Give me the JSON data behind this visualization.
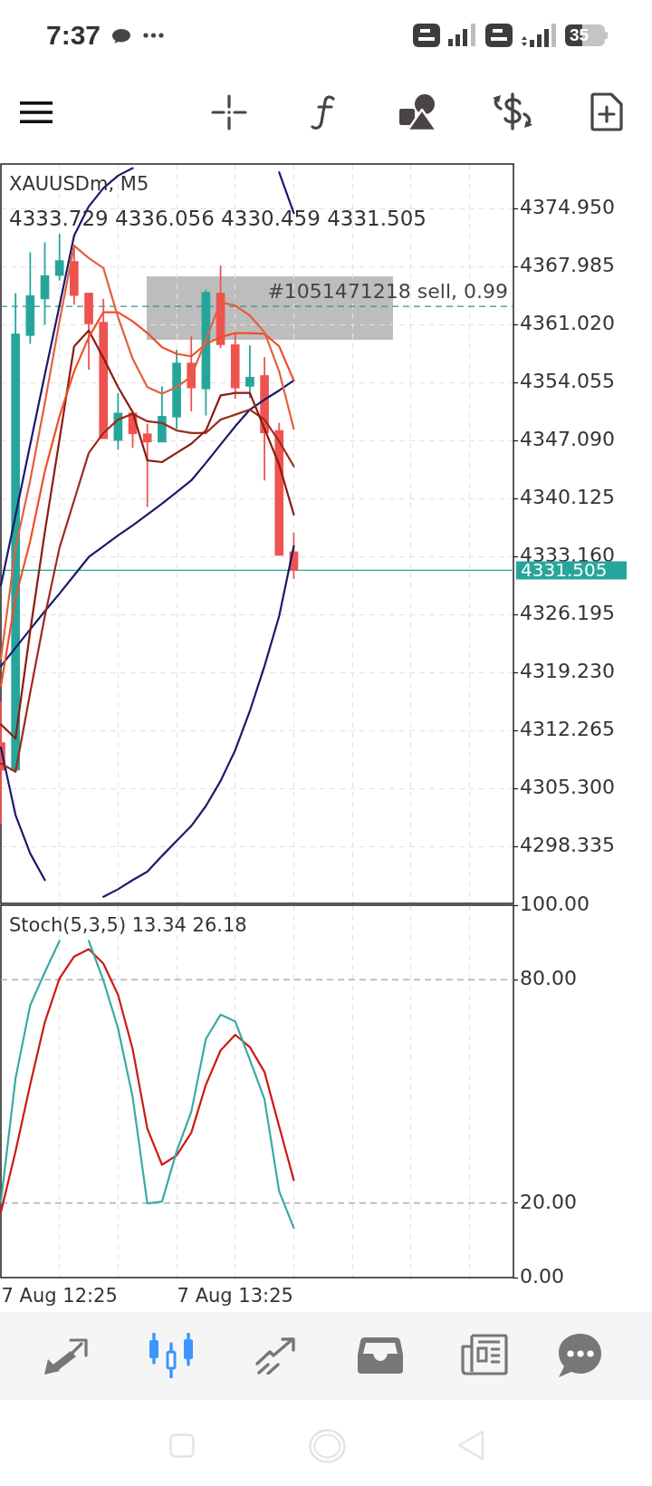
{
  "chart_data": [
    {
      "type": "candlestick",
      "title": "XAUUSDm, M5",
      "subtitle": "4333.729 4336.056 4330.459 4331.505",
      "annotations": [
        "7:37",
        "35"
      ],
      "categories": [
        null,
        null,
        null,
        null,
        null,
        null,
        null,
        null,
        null,
        null,
        null,
        null,
        null,
        null,
        null,
        null,
        null,
        null,
        null,
        null,
        null,
        null,
        null,
        null,
        null,
        null,
        null,
        null,
        null,
        null,
        null,
        null,
        null,
        null,
        null,
        null
      ],
      "ohlc": [
        [
          4310.8,
          4315.7,
          4301.0,
          4307.5
        ],
        [
          4307.5,
          4364.8,
          4307.3,
          4359.9
        ],
        [
          4359.7,
          4369.7,
          4358.7,
          4364.5
        ],
        [
          4364.1,
          4370.9,
          4361.0,
          4366.9
        ],
        [
          4366.9,
          4371.9,
          4366.3,
          4368.7
        ],
        [
          4368.6,
          4370.6,
          4363.4,
          4364.5
        ],
        [
          4364.8,
          4364.8,
          4355.6,
          4361.1
        ],
        [
          4361.3,
          4364.1,
          4347.3,
          4347.3
        ],
        [
          4347.1,
          4352.8,
          4346.0,
          4350.4
        ],
        [
          4350.4,
          4350.5,
          4346.2,
          4347.9
        ],
        [
          4347.9,
          4349.1,
          4339.1,
          4346.9
        ],
        [
          4346.9,
          4353.6,
          4346.9,
          4350.0
        ],
        [
          4349.9,
          4358.0,
          4348.5,
          4356.4
        ],
        [
          4356.4,
          4359.6,
          4350.6,
          4353.4
        ],
        [
          4353.3,
          4365.2,
          4350.1,
          4364.9
        ],
        [
          4364.8,
          4368.1,
          4358.2,
          4358.6
        ],
        [
          4358.6,
          4359.9,
          4352.1,
          4353.4
        ],
        [
          4353.6,
          4358.5,
          4352.2,
          4354.7
        ],
        [
          4354.9,
          4357.1,
          4342.3,
          4348.0
        ],
        [
          4348.3,
          4349.2,
          4333.3,
          4333.3
        ],
        [
          4333.729,
          4336.056,
          4330.459,
          4331.505
        ],
        null,
        null,
        null,
        null,
        null,
        null,
        null,
        null,
        null,
        null,
        null,
        null,
        null,
        null,
        null
      ],
      "colors": [
        "#ef5350",
        "#26a69a",
        "#26a69a",
        "#26a69a",
        "#26a69a",
        "#ef5350",
        "#ef5350",
        "#ef5350",
        "#26a69a",
        "#ef5350",
        "#ef5350",
        "#26a69a",
        "#26a69a",
        "#ef5350",
        "#26a69a",
        "#ef5350",
        "#ef5350",
        "#26a69a",
        "#ef5350",
        "#ef5350",
        "#ef5350",
        null,
        null,
        null,
        null,
        null,
        null,
        null,
        null,
        null,
        null,
        null,
        null,
        null,
        null,
        null
      ],
      "series": [
        {
          "type": "line",
          "color": "#e2603f",
          "values": [
            4320.9,
            4334.2,
            4342.3,
            4351.6,
            4361.4,
            4370.5,
            4369.0,
            4367.8,
            4361.9,
            4356.9,
            4353.5,
            4352.7,
            4353.5,
            4354.8,
            4359.2,
            4363.7,
            4363.3,
            4362.1,
            4360.1,
            4355.4,
            4348.5,
            null,
            null,
            null,
            null,
            null,
            null,
            null,
            null,
            null,
            null,
            null,
            null,
            null,
            null,
            null
          ]
        },
        {
          "type": "line",
          "color": "#f24e26",
          "values": [
            4317.6,
            4328.2,
            4335.0,
            4343.4,
            4350.0,
            4355.4,
            4359.5,
            4362.5,
            4362.5,
            4361.4,
            4360.0,
            4358.3,
            4357.5,
            4357.2,
            4358.7,
            4359.5,
            4360.0,
            4360.0,
            4359.9,
            4358.4,
            4354.3,
            null,
            null,
            null,
            null,
            null,
            null,
            null,
            null,
            null,
            null,
            null,
            null,
            null,
            null,
            null
          ]
        },
        {
          "type": "line",
          "color": "#8a1c12",
          "values": [
            4313.0,
            4311.3,
            4324.2,
            4336.1,
            4347.2,
            4358.4,
            4360.3,
            4357.0,
            4353.5,
            4350.5,
            4344.7,
            4344.5,
            4345.6,
            4346.7,
            4348.3,
            4352.5,
            4352.8,
            4352.8,
            4348.5,
            4344.2,
            4338.2,
            null,
            null,
            null,
            null,
            null,
            null,
            null,
            null,
            null,
            null,
            null,
            null,
            null,
            null,
            null
          ]
        },
        {
          "type": "line",
          "color": "#9c2a1e",
          "values": [
            4308.3,
            4307.3,
            4316.8,
            4326.0,
            4334.2,
            4339.9,
            4345.6,
            4348.0,
            4349.6,
            4350.3,
            4349.4,
            4349.2,
            4348.3,
            4348.0,
            4348.0,
            4349.6,
            4350.2,
            4350.8,
            4349.6,
            4347.0,
            4344.0,
            null,
            null,
            null,
            null,
            null,
            null,
            null,
            null,
            null,
            null,
            null,
            null,
            null,
            null,
            null
          ]
        },
        {
          "type": "line",
          "color": "#1a1a6e",
          "values": [
            4329.7,
            4338.1,
            4346.6,
            4355.0,
            4363.3,
            4371.7,
            4375.2,
            4377.4,
            4378.9,
            4379.8,
            null,
            null,
            null,
            null,
            null,
            null,
            null,
            null,
            null,
            4379.3,
            4374.4,
            null,
            null,
            null,
            null,
            null,
            null,
            null,
            null,
            null,
            null,
            null,
            null,
            null,
            null,
            null
          ]
        },
        {
          "type": "line",
          "color": "#1a1a6e",
          "values": [
            4320.0,
            4322.2,
            4324.4,
            4326.6,
            4328.7,
            4330.9,
            4333.1,
            4334.4,
            4335.7,
            4336.9,
            4338.2,
            4339.5,
            4340.9,
            4342.3,
            4344.4,
            4346.6,
            4348.8,
            4350.8,
            4352.0,
            4353.1,
            4354.3,
            null,
            null,
            null,
            null,
            null,
            null,
            null,
            null,
            null,
            null,
            null,
            null,
            null,
            null,
            null
          ]
        },
        {
          "type": "line",
          "color": "#1a1a6e",
          "values": [
            4310.2,
            4302.1,
            4297.5,
            4294.3,
            null,
            null,
            null,
            4292.3,
            4293.2,
            4294.3,
            4295.3,
            4297.2,
            4299.0,
            4300.8,
            4303.2,
            4306.2,
            4309.9,
            4314.6,
            4320.0,
            4326.0,
            4334.4,
            null,
            null,
            null,
            null,
            null,
            null,
            null,
            null,
            null,
            null,
            null,
            null,
            null,
            null,
            null
          ]
        }
      ],
      "ylim": [
        4291.5,
        4380.3
      ],
      "yticks": [
        {
          "value": 4374.95,
          "label": "4374.950"
        },
        4367.985,
        {
          "value": 4361.02,
          "label": "4361.020"
        },
        4354.055,
        {
          "value": 4347.09,
          "label": "4347.090"
        },
        4340.125,
        {
          "value": 4333.16,
          "label": "4333.160"
        },
        4326.195,
        {
          "value": 4319.23,
          "label": "4319.230"
        },
        4312.265,
        {
          "value": 4305.3,
          "label": "4305.300"
        },
        4298.335
      ],
      "grid": true,
      "ref_lines": [
        {
          "axis": "y",
          "value": 4331.505,
          "label": "4331.505",
          "color": "#26a69a"
        },
        {
          "axis": "y",
          "value": 4363.2,
          "label": "#1051471218 sell, 0.99",
          "color": "#3a8f8b",
          "line_style": "dashed"
        }
      ]
    },
    {
      "type": "line",
      "title": "Stoch(5,3,5) 13.34 26.18",
      "categories": [
        null,
        null,
        null,
        null,
        "7 Aug 12:25",
        null,
        null,
        null,
        null,
        null,
        null,
        null,
        null,
        null,
        null,
        null,
        "7 Aug 13:25",
        null,
        null,
        null,
        null,
        null,
        null,
        null,
        null,
        null,
        null,
        null,
        null,
        null,
        null,
        null,
        null,
        null,
        null,
        null
      ],
      "series": [
        {
          "color": "#3aaaa2",
          "values": [
            20.4,
            53.5,
            73.1,
            82.0,
            90.4,
            null,
            90.4,
            79.8,
            66.9,
            48.4,
            19.9,
            20.4,
            33.9,
            44.5,
            64.1,
            70.6,
            68.8,
            58.5,
            47.9,
            23.2,
            13.34,
            null,
            null,
            null,
            null,
            null,
            null,
            null,
            null,
            null,
            null,
            null,
            null,
            null,
            null,
            null
          ]
        },
        {
          "color": "#cc1a14",
          "values": [
            17.6,
            33.9,
            51.8,
            68.6,
            80.3,
            86.2,
            88.2,
            84.3,
            75.9,
            61.3,
            40.0,
            30.3,
            32.8,
            38.9,
            51.8,
            61.0,
            65.2,
            61.9,
            55.2,
            40.6,
            26.18,
            null,
            null,
            null,
            null,
            null,
            null,
            null,
            null,
            null,
            null,
            null,
            null,
            null,
            null,
            null
          ]
        }
      ],
      "ylim": [
        0,
        100
      ],
      "yticks": [
        {
          "value": 0,
          "label": "0.00"
        },
        {
          "value": 20,
          "label": "20.00"
        },
        {
          "value": 80,
          "label": "80.00"
        },
        {
          "value": 100,
          "label": "100.00"
        }
      ],
      "grid": "x",
      "ref_lines": [
        {
          "axis": "y",
          "value": 20,
          "color": "#b0b0b0",
          "line_style": "dashed"
        },
        {
          "axis": "y",
          "value": 80,
          "color": "#b0b0b0",
          "line_style": "dashed"
        }
      ]
    }
  ]
}
